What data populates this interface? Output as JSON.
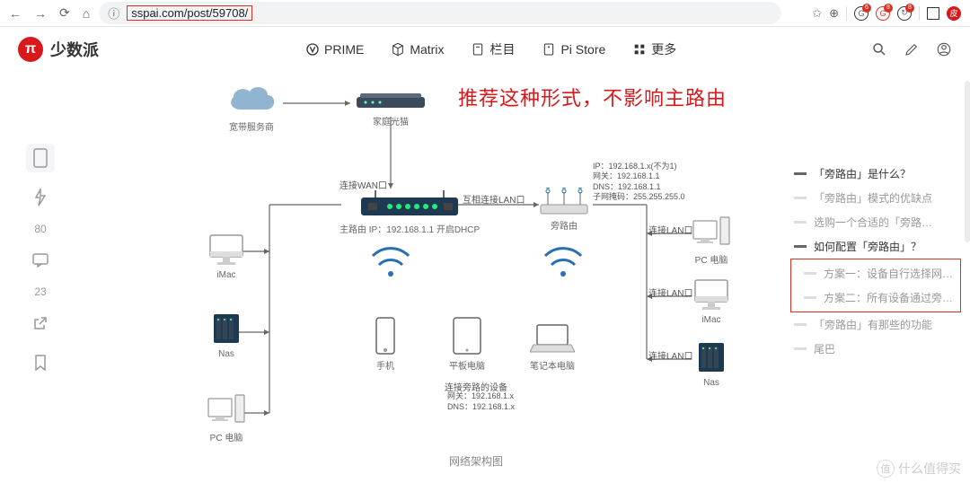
{
  "browser": {
    "url": "sspai.com/post/59708/",
    "ext_badges": [
      "6",
      "8",
      "8"
    ]
  },
  "site": {
    "name": "少数派",
    "nav": [
      "PRIME",
      "Matrix",
      "栏目",
      "Pi Store",
      "更多"
    ]
  },
  "left_rail": {
    "like_count": "80",
    "comment_count": "23"
  },
  "headline": "推荐这种形式，不影响主路由",
  "diagram": {
    "caption": "网络架构图",
    "isp": "宽带服务商",
    "modem": "家庭光猫",
    "wan_label": "连接WAN口",
    "main_router": "主路由 IP：192.168.1.1 开启DHCP",
    "lan_cross": "互相连接LAN口",
    "side_router": "旁路由",
    "side_info": "IP：192.168.1.x(不为1)\n网关：192.168.1.1\nDNS：192.168.1.1\n子网掩码：255.255.255.0",
    "lan_label": "连接LAN口",
    "devices": {
      "imac": "iMac",
      "nas": "Nas",
      "pc": "PC 电脑",
      "phone": "手机",
      "tablet": "平板电脑",
      "laptop": "笔记本电脑"
    },
    "side_devices_title": "连接旁路的设备",
    "side_devices_info": "网关：192.168.1.x\nDNS：192.168.1.x"
  },
  "toc": [
    {
      "t": "「旁路由」是什么？",
      "active": true,
      "sub": false
    },
    {
      "t": "「旁路由」模式的优缺点",
      "active": false,
      "sub": false
    },
    {
      "t": "选购一个合适的「旁路…",
      "active": false,
      "sub": false
    },
    {
      "t": "如何配置「旁路由」？",
      "active": true,
      "sub": false
    },
    {
      "t": "方案一：设备自行选择网…",
      "active": false,
      "sub": true,
      "boxed": true
    },
    {
      "t": "方案二：所有设备通过旁…",
      "active": false,
      "sub": true,
      "boxed": true
    },
    {
      "t": "「旁路由」有那些的功能",
      "active": false,
      "sub": false
    },
    {
      "t": "尾巴",
      "active": false,
      "sub": false
    }
  ],
  "watermark": "什么值得买",
  "colors": {
    "red": "#d7191c",
    "blue": "#2a6fb0",
    "gray": "#888",
    "cloud": "#91b4d1"
  }
}
